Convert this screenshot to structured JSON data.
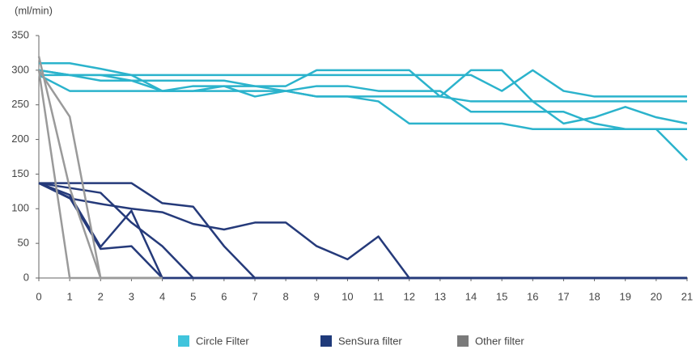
{
  "chart_data": {
    "type": "line",
    "y_unit": "(ml/min)",
    "x": [
      0,
      1,
      2,
      3,
      4,
      5,
      6,
      7,
      8,
      9,
      10,
      11,
      12,
      13,
      14,
      15,
      16,
      17,
      18,
      19,
      20,
      21
    ],
    "xlim": [
      0,
      21
    ],
    "xticks": [
      0,
      1,
      2,
      3,
      4,
      5,
      6,
      7,
      8,
      9,
      10,
      11,
      12,
      13,
      14,
      15,
      16,
      17,
      18,
      19,
      20,
      21
    ],
    "ylim": [
      0,
      350
    ],
    "yticks": [
      0,
      50,
      100,
      150,
      200,
      250,
      300,
      350
    ],
    "series": [
      {
        "name": "Circle Filter",
        "color": "#2bb3cc",
        "legend_color": "#40c4dc",
        "values": [
          [
            310,
            310,
            302,
            293,
            293,
            293,
            293,
            293,
            293,
            293,
            293,
            293,
            293,
            293,
            293,
            270,
            300,
            270,
            262,
            262,
            262,
            262
          ],
          [
            300,
            293,
            285,
            285,
            285,
            285,
            285,
            277,
            277,
            300,
            300,
            300,
            300,
            262,
            300,
            300,
            255,
            223,
            232,
            247,
            232,
            223
          ],
          [
            293,
            293,
            293,
            293,
            270,
            270,
            277,
            277,
            270,
            277,
            277,
            270,
            270,
            270,
            240,
            240,
            240,
            240,
            223,
            215,
            215,
            170
          ],
          [
            293,
            270,
            270,
            270,
            270,
            277,
            277,
            262,
            270,
            262,
            262,
            255,
            223,
            223,
            223,
            223,
            215,
            215,
            215,
            215,
            215,
            215
          ],
          [
            300,
            293,
            293,
            285,
            270,
            270,
            270,
            270,
            270,
            262,
            262,
            262,
            262,
            262,
            255,
            255,
            255,
            255,
            255,
            255,
            255,
            255
          ]
        ]
      },
      {
        "name": "SenSura filter",
        "color": "#253a7a",
        "legend_color": "#1f3a7a",
        "values": [
          [
            137,
            137,
            137,
            137,
            108,
            103,
            46,
            0,
            0,
            0,
            0,
            0,
            0,
            0,
            0,
            0,
            0,
            0,
            0,
            0,
            0,
            0
          ],
          [
            137,
            120,
            45,
            97,
            0,
            0,
            0,
            0,
            0,
            0,
            0,
            0,
            0,
            0,
            0,
            0,
            0,
            0,
            0,
            0,
            0,
            0
          ],
          [
            137,
            115,
            107,
            100,
            95,
            78,
            70,
            80,
            80,
            46,
            27,
            60,
            0,
            0,
            0,
            0,
            0,
            0,
            0,
            0,
            0,
            0
          ],
          [
            137,
            130,
            123,
            80,
            46,
            0,
            0,
            0,
            0,
            0,
            0,
            0,
            0,
            0,
            0,
            0,
            0,
            0,
            0,
            0,
            0,
            0
          ],
          [
            137,
            116,
            42,
            46,
            0,
            0,
            0,
            0,
            0,
            0,
            0,
            0,
            0,
            0,
            0,
            0,
            0,
            0,
            0,
            0,
            0,
            0
          ]
        ]
      },
      {
        "name": "Other filter",
        "color": "#9a9a9a",
        "legend_color": "#7a7a7a",
        "values": [
          [
            300,
            233,
            0,
            0,
            0,
            null,
            null,
            null,
            null,
            null,
            null,
            null,
            null,
            null,
            null,
            null,
            null,
            null,
            null,
            null,
            null,
            null
          ],
          [
            300,
            0,
            0,
            0,
            0,
            null,
            null,
            null,
            null,
            null,
            null,
            null,
            null,
            null,
            null,
            null,
            null,
            null,
            null,
            null,
            null,
            null
          ],
          [
            320,
            130,
            0,
            0,
            0,
            null,
            null,
            null,
            null,
            null,
            null,
            null,
            null,
            null,
            null,
            null,
            null,
            null,
            null,
            null,
            null,
            null
          ]
        ]
      }
    ]
  }
}
